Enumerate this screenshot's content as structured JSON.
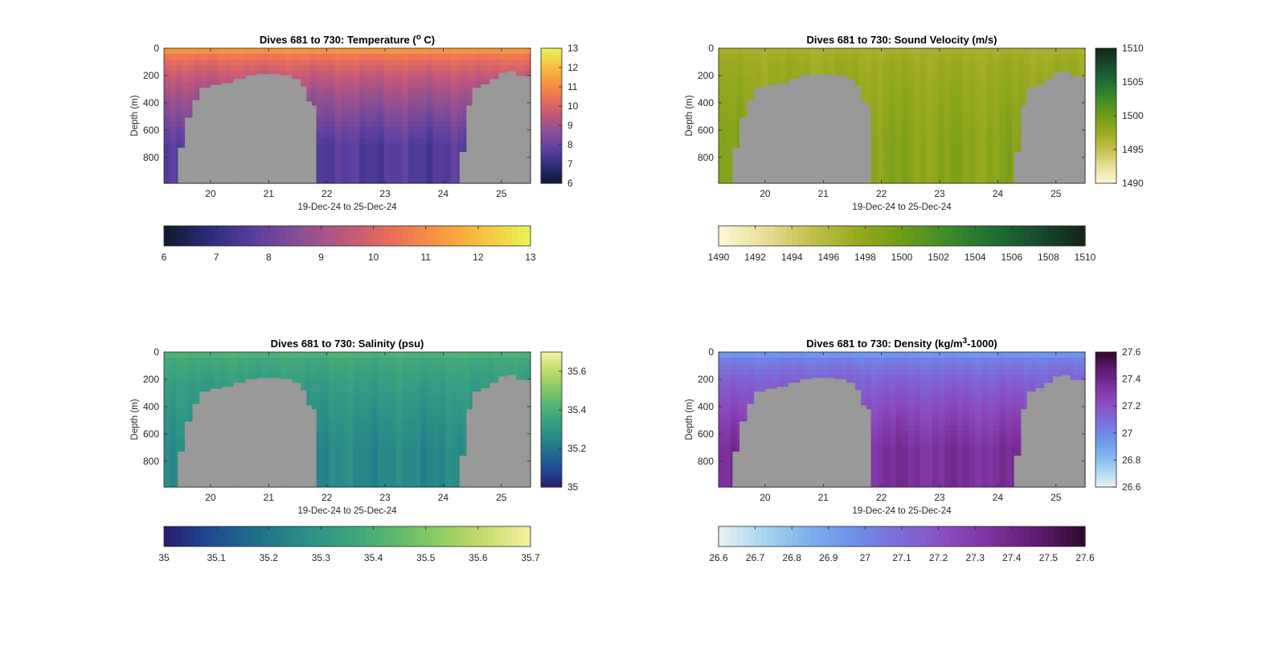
{
  "chart_data": [
    {
      "type": "heatmap",
      "title_text": "Dives 681 to 730: Temperature (",
      "title_sup": "o",
      "title_tail": " C)",
      "xlabel": "19-Dec-24 to 25-Dec-24",
      "ylabel": "Depth (m)",
      "x_range": [
        19.2,
        25.5
      ],
      "x_ticks": [
        "20",
        "21",
        "22",
        "23",
        "24",
        "25"
      ],
      "x_tick_values": [
        20,
        21,
        22,
        23,
        24,
        25
      ],
      "y_range": [
        0,
        990
      ],
      "y_ticks": [
        "0",
        "200",
        "400",
        "600",
        "800"
      ],
      "y_tick_values": [
        0,
        200,
        400,
        600,
        800
      ],
      "color_range": [
        6,
        13
      ],
      "colormap": [
        "#0d1a2e",
        "#2c2c7a",
        "#5a3fa0",
        "#8b4f94",
        "#c0587a",
        "#ea6e5a",
        "#f7963f",
        "#f5c440",
        "#e8f55c"
      ],
      "cbar_ticks": [
        "13",
        "12",
        "11",
        "10",
        "9",
        "8",
        "7",
        "6"
      ],
      "cbar_tick_values": [
        13,
        12,
        11,
        10,
        9,
        8,
        7,
        6
      ],
      "hcbar_ticks": [
        "6",
        "7",
        "8",
        "9",
        "10",
        "11",
        "12",
        "13"
      ],
      "hcbar_tick_values": [
        6,
        7,
        8,
        9,
        10,
        11,
        12,
        13
      ],
      "surface_value": 11.2,
      "deep_value": 7.6,
      "no_data_color": "#999999",
      "no_data_dives": [
        [
          19.44,
          730
        ],
        [
          19.56,
          510
        ],
        [
          19.69,
          380
        ],
        [
          19.81,
          290
        ],
        [
          20.0,
          270
        ],
        [
          20.2,
          255
        ],
        [
          20.4,
          225
        ],
        [
          20.6,
          200
        ],
        [
          20.8,
          190
        ],
        [
          21.0,
          190
        ],
        [
          21.2,
          200
        ],
        [
          21.4,
          225
        ],
        [
          21.55,
          280
        ],
        [
          21.65,
          390
        ],
        [
          21.74,
          420
        ],
        [
          24.28,
          760
        ],
        [
          24.4,
          420
        ],
        [
          24.5,
          290
        ],
        [
          24.65,
          265
        ],
        [
          24.8,
          225
        ],
        [
          24.95,
          180
        ],
        [
          25.1,
          170
        ],
        [
          25.25,
          205
        ],
        [
          25.4,
          205
        ]
      ],
      "no_data_end_x": 21.82,
      "no_data_start2_x": 24.28
    },
    {
      "type": "heatmap",
      "title_text": "Dives 681 to 730: Sound Velocity (m/s)",
      "xlabel": "19-Dec-24 to 25-Dec-24",
      "ylabel": "Depth (m)",
      "x_range": [
        19.2,
        25.5
      ],
      "x_ticks": [
        "20",
        "21",
        "22",
        "23",
        "24",
        "25"
      ],
      "x_tick_values": [
        20,
        21,
        22,
        23,
        24,
        25
      ],
      "y_range": [
        0,
        990
      ],
      "y_ticks": [
        "0",
        "200",
        "400",
        "600",
        "800"
      ],
      "y_tick_values": [
        0,
        200,
        400,
        600,
        800
      ],
      "color_range": [
        1490,
        1510
      ],
      "colormap": [
        "#fdf7d8",
        "#e9df98",
        "#c4c04e",
        "#9aaa1f",
        "#6f9c18",
        "#3e8a28",
        "#1e6e35",
        "#184a2c",
        "#122417"
      ],
      "cbar_ticks": [
        "1510",
        "1505",
        "1500",
        "1495",
        "1490"
      ],
      "cbar_tick_values": [
        1510,
        1505,
        1500,
        1495,
        1490
      ],
      "hcbar_ticks": [
        "1490",
        "1492",
        "1494",
        "1496",
        "1498",
        "1500",
        "1502",
        "1504",
        "1506",
        "1508",
        "1510"
      ],
      "hcbar_tick_values": [
        1490,
        1492,
        1494,
        1496,
        1498,
        1500,
        1502,
        1504,
        1506,
        1508,
        1510
      ],
      "surface_value": 1496.8,
      "deep_value": 1498.5,
      "no_data_color": "#999999",
      "no_data_dives": [
        [
          19.44,
          730
        ],
        [
          19.56,
          510
        ],
        [
          19.69,
          380
        ],
        [
          19.81,
          290
        ],
        [
          20.0,
          270
        ],
        [
          20.2,
          255
        ],
        [
          20.4,
          225
        ],
        [
          20.6,
          200
        ],
        [
          20.8,
          190
        ],
        [
          21.0,
          190
        ],
        [
          21.2,
          200
        ],
        [
          21.4,
          225
        ],
        [
          21.55,
          280
        ],
        [
          21.65,
          390
        ],
        [
          21.74,
          420
        ],
        [
          24.28,
          760
        ],
        [
          24.4,
          420
        ],
        [
          24.5,
          290
        ],
        [
          24.65,
          265
        ],
        [
          24.8,
          225
        ],
        [
          24.95,
          180
        ],
        [
          25.1,
          170
        ],
        [
          25.25,
          205
        ],
        [
          25.4,
          205
        ]
      ],
      "no_data_end_x": 21.82,
      "no_data_start2_x": 24.28
    },
    {
      "type": "heatmap",
      "title_text": "Dives 681 to 730: Salinity (psu)",
      "xlabel": "19-Dec-24 to 25-Dec-24",
      "ylabel": "Depth (m)",
      "x_range": [
        19.2,
        25.5
      ],
      "x_ticks": [
        "20",
        "21",
        "22",
        "23",
        "24",
        "25"
      ],
      "x_tick_values": [
        20,
        21,
        22,
        23,
        24,
        25
      ],
      "y_range": [
        0,
        990
      ],
      "y_ticks": [
        "0",
        "200",
        "400",
        "600",
        "800"
      ],
      "y_tick_values": [
        0,
        200,
        400,
        600,
        800
      ],
      "color_range": [
        35,
        35.7
      ],
      "colormap": [
        "#2a1a6e",
        "#1f4a92",
        "#1f6e8c",
        "#2a8c88",
        "#3aa37f",
        "#5ab86e",
        "#8fcc62",
        "#c6dc6c",
        "#f6f2a6"
      ],
      "cbar_ticks": [
        "35.6",
        "35.4",
        "35.2",
        "35"
      ],
      "cbar_tick_values": [
        35.6,
        35.4,
        35.2,
        35
      ],
      "hcbar_ticks": [
        "35",
        "35.1",
        "35.2",
        "35.3",
        "35.4",
        "35.5",
        "35.6",
        "35.7"
      ],
      "hcbar_tick_values": [
        35,
        35.1,
        35.2,
        35.3,
        35.4,
        35.5,
        35.6,
        35.7
      ],
      "surface_value": 35.4,
      "deep_value": 35.25,
      "no_data_color": "#999999",
      "no_data_dives": [
        [
          19.44,
          730
        ],
        [
          19.56,
          510
        ],
        [
          19.69,
          380
        ],
        [
          19.81,
          290
        ],
        [
          20.0,
          270
        ],
        [
          20.2,
          255
        ],
        [
          20.4,
          225
        ],
        [
          20.6,
          200
        ],
        [
          20.8,
          190
        ],
        [
          21.0,
          190
        ],
        [
          21.2,
          200
        ],
        [
          21.4,
          225
        ],
        [
          21.55,
          280
        ],
        [
          21.65,
          390
        ],
        [
          21.74,
          420
        ],
        [
          24.28,
          760
        ],
        [
          24.4,
          420
        ],
        [
          24.5,
          290
        ],
        [
          24.65,
          265
        ],
        [
          24.8,
          225
        ],
        [
          24.95,
          180
        ],
        [
          25.1,
          170
        ],
        [
          25.25,
          205
        ],
        [
          25.4,
          205
        ]
      ],
      "no_data_end_x": 21.82,
      "no_data_start2_x": 24.28
    },
    {
      "type": "heatmap",
      "title_text": "Dives 681 to 730: Density (kg/m",
      "title_sup": "3",
      "title_tail": "-1000)",
      "xlabel": "19-Dec-24 to 25-Dec-24",
      "ylabel": "Depth (m)",
      "x_range": [
        19.2,
        25.5
      ],
      "x_ticks": [
        "20",
        "21",
        "22",
        "23",
        "24",
        "25"
      ],
      "x_tick_values": [
        20,
        21,
        22,
        23,
        24,
        25
      ],
      "y_range": [
        0,
        990
      ],
      "y_ticks": [
        "0",
        "200",
        "400",
        "600",
        "800"
      ],
      "y_tick_values": [
        0,
        200,
        400,
        600,
        800
      ],
      "color_range": [
        26.6,
        27.6
      ],
      "colormap": [
        "#e7f3f5",
        "#a9d4ee",
        "#7ab0ee",
        "#6e8ee8",
        "#7d6ad8",
        "#8a4cc0",
        "#7d2f9a",
        "#5e1a6e",
        "#2e0a2e"
      ],
      "cbar_ticks": [
        "27.6",
        "27.4",
        "27.2",
        "27",
        "26.8",
        "26.6"
      ],
      "cbar_tick_values": [
        27.6,
        27.4,
        27.2,
        27,
        26.8,
        26.6
      ],
      "hcbar_ticks": [
        "26.6",
        "26.7",
        "26.8",
        "26.9",
        "27",
        "27.1",
        "27.2",
        "27.3",
        "27.4",
        "27.5",
        "27.6"
      ],
      "hcbar_tick_values": [
        26.6,
        26.7,
        26.8,
        26.9,
        27,
        27.1,
        27.2,
        27.3,
        27.4,
        27.5,
        27.6
      ],
      "surface_value": 26.95,
      "deep_value": 27.35,
      "no_data_color": "#999999",
      "no_data_dives": [
        [
          19.44,
          730
        ],
        [
          19.56,
          510
        ],
        [
          19.69,
          380
        ],
        [
          19.81,
          290
        ],
        [
          20.0,
          270
        ],
        [
          20.2,
          255
        ],
        [
          20.4,
          225
        ],
        [
          20.6,
          200
        ],
        [
          20.8,
          190
        ],
        [
          21.0,
          190
        ],
        [
          21.2,
          200
        ],
        [
          21.4,
          225
        ],
        [
          21.55,
          280
        ],
        [
          21.65,
          390
        ],
        [
          21.74,
          420
        ],
        [
          24.28,
          760
        ],
        [
          24.4,
          420
        ],
        [
          24.5,
          290
        ],
        [
          24.65,
          265
        ],
        [
          24.8,
          225
        ],
        [
          24.95,
          180
        ],
        [
          25.1,
          170
        ],
        [
          25.25,
          205
        ],
        [
          25.4,
          205
        ]
      ],
      "no_data_end_x": 21.82,
      "no_data_start2_x": 24.28
    }
  ]
}
